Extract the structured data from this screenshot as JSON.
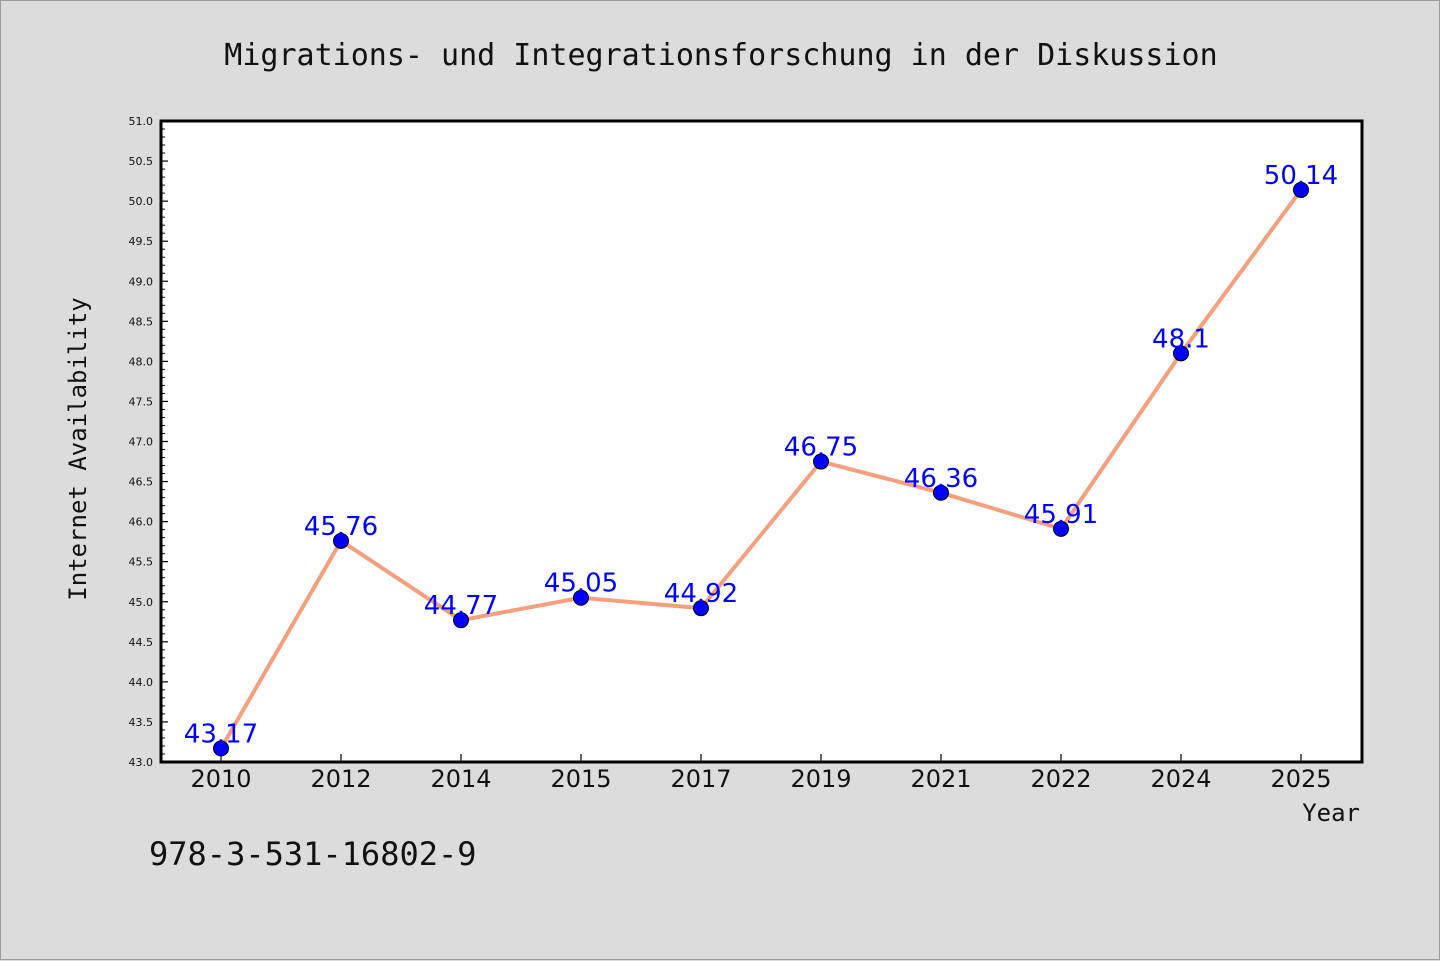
{
  "chart_data": {
    "type": "line",
    "title": "Migrations- und Integrationsforschung in der Diskussion",
    "xlabel": "Year",
    "ylabel": "Internet Availability",
    "categories": [
      "2010",
      "2012",
      "2014",
      "2015",
      "2017",
      "2019",
      "2021",
      "2022",
      "2024",
      "2025"
    ],
    "series": [
      {
        "values": [
          43.17,
          45.76,
          44.77,
          45.05,
          44.92,
          46.75,
          46.36,
          45.91,
          48.1,
          50.14
        ],
        "line_color": "#f4a07e",
        "marker_color": "#0000ff"
      }
    ],
    "data_labels": [
      "43.17",
      "45.76",
      "44.77",
      "45.05",
      "44.92",
      "46.75",
      "46.36",
      "45.91",
      "48.1",
      "50.14"
    ],
    "ylim": [
      43.0,
      51.0
    ],
    "ytick_step": 0.5,
    "grid": false,
    "legend": "none"
  },
  "footnote": "978-3-531-16802-9"
}
